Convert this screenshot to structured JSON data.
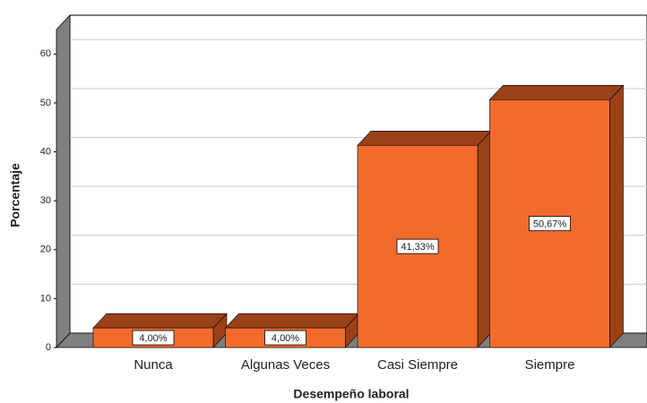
{
  "chart_data": {
    "type": "bar3d",
    "x_label": "Desempeño laboral",
    "y_label": "Porcentaje",
    "categories": [
      "Nunca",
      "Algunas Veces",
      "Casi Siempre",
      "Siempre"
    ],
    "values": [
      4.0,
      4.0,
      41.33,
      50.67
    ],
    "value_labels": [
      "4,00%",
      "4,00%",
      "41,33%",
      "50,67%"
    ],
    "color": "#f26b2d",
    "ylim": [
      0,
      65
    ],
    "yticks": [
      0,
      10,
      20,
      30,
      40,
      50,
      60
    ],
    "grid": true
  }
}
